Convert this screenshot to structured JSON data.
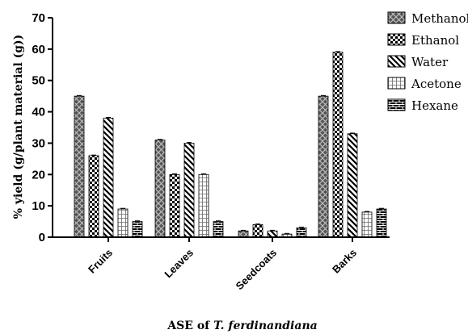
{
  "chart_data": {
    "type": "bar",
    "title": "",
    "xlabel": "ASE of ",
    "xlabel_italic": "T. ferdinandiana",
    "ylabel": "% yield (g/plant material (g))",
    "categories": [
      "Fruits",
      "Leaves",
      "Seedcoats",
      "Barks"
    ],
    "ylim": [
      0,
      70
    ],
    "yticks": [
      "0",
      "10",
      "20",
      "30",
      "40",
      "50",
      "60",
      "70"
    ],
    "grid": false,
    "legend_position": "top-right",
    "series": [
      {
        "name": "Methanol",
        "pattern": "crosshatch",
        "values": [
          45,
          31,
          2,
          45
        ]
      },
      {
        "name": "Ethanol",
        "pattern": "checker",
        "values": [
          26,
          20,
          4,
          59
        ]
      },
      {
        "name": "Water",
        "pattern": "diagonal-stripes",
        "values": [
          38,
          30,
          2,
          33
        ]
      },
      {
        "name": "Acetone",
        "pattern": "grid",
        "values": [
          9,
          20,
          1,
          8
        ]
      },
      {
        "name": "Hexane",
        "pattern": "brick",
        "values": [
          5,
          5,
          3,
          9
        ]
      }
    ]
  }
}
